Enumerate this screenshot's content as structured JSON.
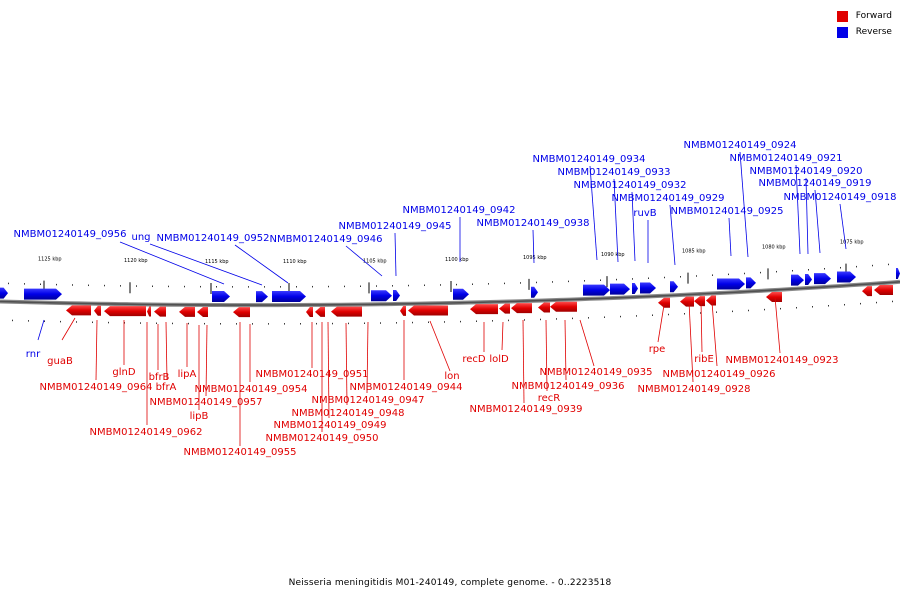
{
  "legend": {
    "forward_label": "Forward",
    "reverse_label": "Reverse",
    "forward_color": "#e00000",
    "reverse_color": "#0000e8"
  },
  "caption": "Neisseria meningitidis M01-240149, complete genome. - 0..2223518",
  "ticks": [
    "1125 kbp",
    "1120 kbp",
    "1115 kbp",
    "1110 kbp",
    "1105 kbp",
    "1100 kbp",
    "1095 kbp",
    "1090 kbp",
    "1085 kbp",
    "1080 kbp",
    "1075 kbp"
  ],
  "reverse_labels": [
    "NMBM01240149_0956",
    "ung",
    "NMBM01240149_0952",
    "NMBM01240149_0946",
    "NMBM01240149_0945",
    "NMBM01240149_0942",
    "NMBM01240149_0938",
    "NMBM01240149_0934",
    "NMBM01240149_0933",
    "NMBM01240149_0932",
    "ruvB",
    "NMBM01240149_0929",
    "NMBM01240149_0925",
    "NMBM01240149_0924",
    "NMBM01240149_0921",
    "NMBM01240149_0920",
    "NMBM01240149_0919",
    "NMBM01240149_0918",
    "rnr"
  ],
  "forward_labels": [
    "guaB",
    "NMBM01240149_0964",
    "glnD",
    "bfrB",
    "bfrA",
    "lipA",
    "NMBM01240149_0957",
    "lipB",
    "NMBM01240149_0962",
    "NMBM01240149_0954",
    "NMBM01240149_0955",
    "NMBM01240149_0951",
    "NMBM01240149_0947",
    "NMBM01240149_0948",
    "NMBM01240149_0949",
    "NMBM01240149_0950",
    "lon",
    "NMBM01240149_0944",
    "recD",
    "lolD",
    "NMBM01240149_0935",
    "NMBM01240149_0936",
    "recR",
    "NMBM01240149_0939",
    "rpe",
    "ribE",
    "NMBM01240149_0926",
    "NMBM01240149_0928",
    "NMBM01240149_0923"
  ]
}
